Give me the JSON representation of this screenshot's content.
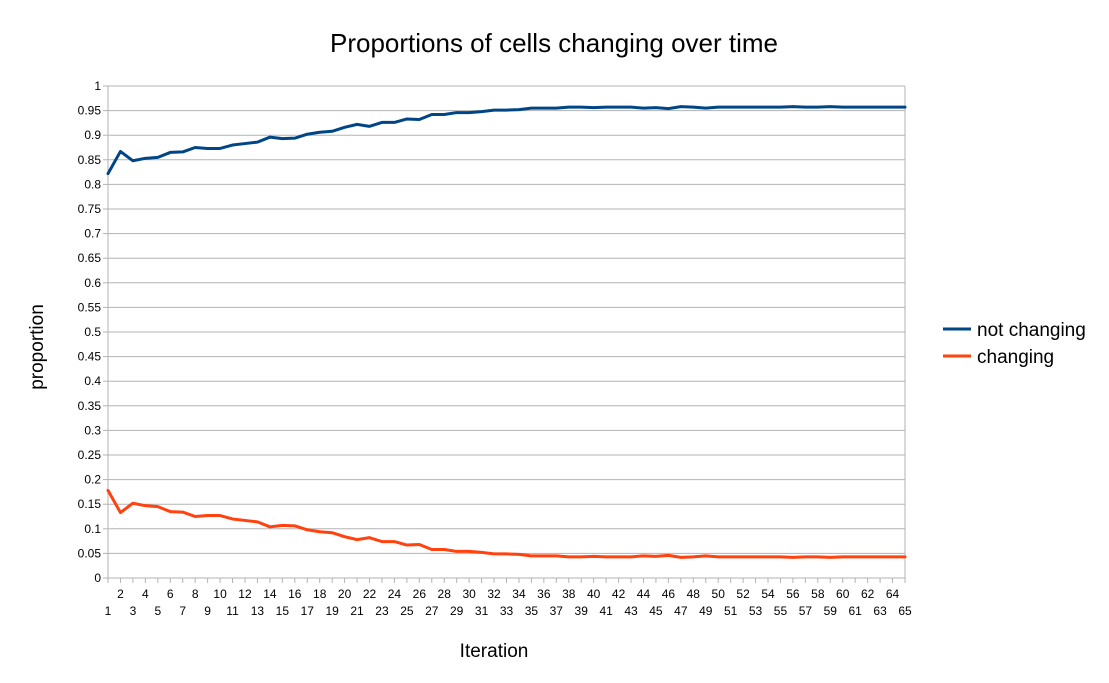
{
  "chart_data": {
    "type": "line",
    "title": "Proportions of cells changing over time",
    "xlabel": "Iteration",
    "ylabel": "proportion",
    "ylim": [
      0,
      1
    ],
    "ytick_step": 0.05,
    "grid": "horizontal",
    "legend": "right",
    "x": [
      1,
      2,
      3,
      4,
      5,
      6,
      7,
      8,
      9,
      10,
      11,
      12,
      13,
      14,
      15,
      16,
      17,
      18,
      19,
      20,
      21,
      22,
      23,
      24,
      25,
      26,
      27,
      28,
      29,
      30,
      31,
      32,
      33,
      34,
      35,
      36,
      37,
      38,
      39,
      40,
      41,
      42,
      43,
      44,
      45,
      46,
      47,
      48,
      49,
      50,
      51,
      52,
      53,
      54,
      55,
      56,
      57,
      58,
      59,
      60,
      61,
      62,
      63,
      64,
      65
    ],
    "series": [
      {
        "name": "not changing",
        "color": "#004586",
        "values": [
          0.822,
          0.867,
          0.848,
          0.853,
          0.855,
          0.865,
          0.866,
          0.875,
          0.873,
          0.873,
          0.88,
          0.883,
          0.886,
          0.896,
          0.893,
          0.894,
          0.902,
          0.906,
          0.908,
          0.916,
          0.922,
          0.918,
          0.926,
          0.926,
          0.933,
          0.932,
          0.942,
          0.942,
          0.946,
          0.946,
          0.948,
          0.951,
          0.951,
          0.952,
          0.955,
          0.955,
          0.955,
          0.957,
          0.957,
          0.956,
          0.957,
          0.957,
          0.957,
          0.955,
          0.956,
          0.954,
          0.958,
          0.957,
          0.955,
          0.957,
          0.957,
          0.957,
          0.957,
          0.957,
          0.957,
          0.958,
          0.957,
          0.957,
          0.958,
          0.957,
          0.957,
          0.957,
          0.957,
          0.957,
          0.957
        ]
      },
      {
        "name": "changing",
        "color": "#ff420e",
        "values": [
          0.178,
          0.133,
          0.152,
          0.147,
          0.145,
          0.135,
          0.134,
          0.125,
          0.127,
          0.127,
          0.12,
          0.117,
          0.114,
          0.104,
          0.107,
          0.106,
          0.098,
          0.094,
          0.092,
          0.084,
          0.078,
          0.082,
          0.074,
          0.074,
          0.067,
          0.068,
          0.058,
          0.058,
          0.054,
          0.054,
          0.052,
          0.049,
          0.049,
          0.048,
          0.045,
          0.045,
          0.045,
          0.043,
          0.043,
          0.044,
          0.043,
          0.043,
          0.043,
          0.045,
          0.044,
          0.046,
          0.042,
          0.043,
          0.045,
          0.043,
          0.043,
          0.043,
          0.043,
          0.043,
          0.043,
          0.042,
          0.043,
          0.043,
          0.042,
          0.043,
          0.043,
          0.043,
          0.043,
          0.043,
          0.043
        ]
      }
    ]
  }
}
